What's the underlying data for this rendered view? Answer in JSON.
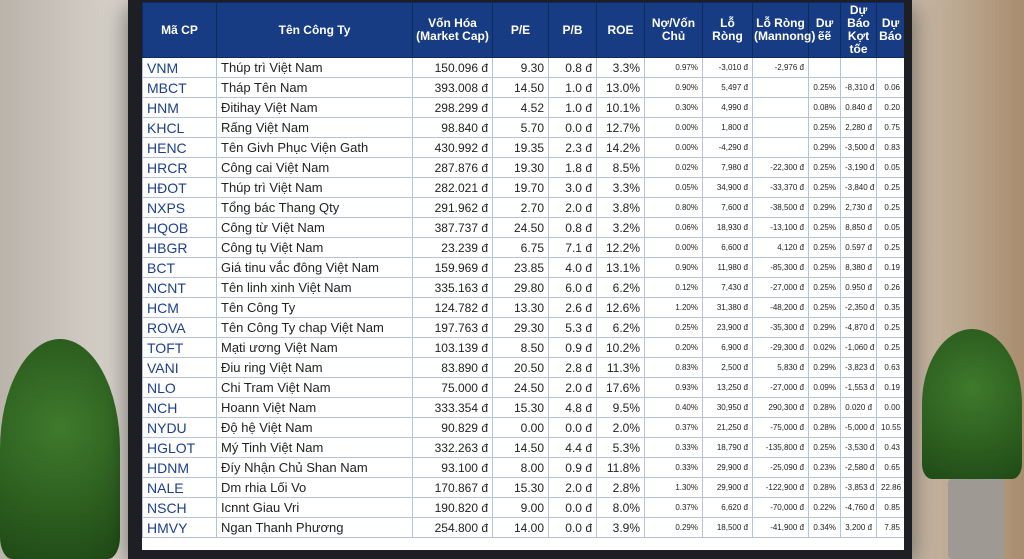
{
  "table": {
    "columns": [
      "Mã CP",
      "Tên Công Ty",
      "Vốn Hóa (Market Cap)",
      "P/E",
      "P/B",
      "ROE",
      "Nợ/Vốn Chủ",
      "Lỗ Ròng",
      "Lỗ Ròng (Mannong)",
      "Dư ẽẽ",
      "Dự Báo Kợt tốe",
      "Dự Báo"
    ],
    "rows": [
      [
        "VNM",
        "Thúp trì Việt Nam",
        "150.096 đ",
        "9.30",
        "0.8 đ",
        "3.3%",
        "0.97%",
        "-3,010 đ",
        "-2,976 đ",
        null,
        null,
        null
      ],
      [
        "MBCT",
        "Tháp Tên Nam",
        "393.008 đ",
        "14.50",
        "1.0 đ",
        "13.0%",
        "0.90%",
        "5,497 đ",
        null,
        "0.25%",
        "-8,310 đ",
        "0.06"
      ],
      [
        "HNM",
        "Đitihay Việt Nam",
        "298.299 đ",
        "4.52",
        "1.0 đ",
        "10.1%",
        "0.30%",
        "4,990 đ",
        null,
        "0.08%",
        "0.840 đ",
        "0.20"
      ],
      [
        "KHCL",
        "Rấng Việt Nam",
        "98.840 đ",
        "5.70",
        "0.0 đ",
        "12.7%",
        "0.00%",
        "1,800 đ",
        null,
        "0.25%",
        "2,280 đ",
        "0.75"
      ],
      [
        "HENC",
        "Tên Givh Phục Viện Gath",
        "430.992 đ",
        "19.35",
        "2.3 đ",
        "14.2%",
        "0.00%",
        "-4,290 đ",
        null,
        "0.29%",
        "-3,500 đ",
        "0.83"
      ],
      [
        "HRCR",
        "Công cai Việt Nam",
        "287.876 đ",
        "19.30",
        "1.8 đ",
        "8.5%",
        "0.02%",
        "7,980 đ",
        "-22,300 đ",
        "0.25%",
        "-3,190 đ",
        "0.05"
      ],
      [
        "HĐOT",
        "Thúp trì Việt Nam",
        "282.021 đ",
        "19.70",
        "3.0 đ",
        "3.3%",
        "0.05%",
        "34,900 đ",
        "-33,370 đ",
        "0.25%",
        "-3,840 đ",
        "0.25"
      ],
      [
        "NXPS",
        "Tổng bác Thang Qty",
        "291.962 đ",
        "2.70",
        "2.0 đ",
        "3.8%",
        "0.80%",
        "7,600 đ",
        "-38,500 đ",
        "0.29%",
        "2,730 đ",
        "0.25"
      ],
      [
        "HQOB",
        "Công từ Việt Nam",
        "387.737 đ",
        "24.50",
        "0.8 đ",
        "3.2%",
        "0.06%",
        "18,930 đ",
        "-13,100 đ",
        "0.25%",
        "8,850 đ",
        "0.05"
      ],
      [
        "HBGR",
        "Công tụ Việt Nam",
        "23.239 đ",
        "6.75",
        "7.1 đ",
        "12.2%",
        "0.00%",
        "6,600 đ",
        "4,120 đ",
        "0.25%",
        "0.597 đ",
        "0.25"
      ],
      [
        "BCT",
        "Giá tinu vắc đông Việt Nam",
        "159.969 đ",
        "23.85",
        "4.0 đ",
        "13.1%",
        "0.90%",
        "11,980 đ",
        "-85,300 đ",
        "0.25%",
        "8,380 đ",
        "0.19"
      ],
      [
        "NCNT",
        "Tên linh xinh Việt Nam",
        "335.163 đ",
        "29.80",
        "6.0 đ",
        "6.2%",
        "0.12%",
        "7,430 đ",
        "-27,000 đ",
        "0.25%",
        "0.950 đ",
        "0.26"
      ],
      [
        "HCM",
        "Tên Công Ty",
        "124.782 đ",
        "13.30",
        "2.6 đ",
        "12.6%",
        "1.20%",
        "31,380 đ",
        "-48,200 đ",
        "0.25%",
        "-2,350 đ",
        "0.35"
      ],
      [
        "ROVA",
        "Tên Công Ty chap Việt Nam",
        "197.763 đ",
        "29.30",
        "5.3 đ",
        "6.2%",
        "0.25%",
        "23,900 đ",
        "-35,300 đ",
        "0.29%",
        "-4,870 đ",
        "0.25"
      ],
      [
        "TOFT",
        "Mạti ương Việt Nam",
        "103.139 đ",
        "8.50",
        "0.9 đ",
        "10.2%",
        "0.20%",
        "6,900 đ",
        "-29,300 đ",
        "0.02%",
        "-1,060 đ",
        "0.25"
      ],
      [
        "VANI",
        "Điu ring Việt Nam",
        "83.890 đ",
        "20.50",
        "2.8 đ",
        "11.3%",
        "0.83%",
        "2,500 đ",
        "5,830 đ",
        "0.29%",
        "-3,823 đ",
        "0.63"
      ],
      [
        "NLO",
        "Chi Tram Việt Nam",
        "75.000 đ",
        "24.50",
        "2.0 đ",
        "17.6%",
        "0.93%",
        "13,250 đ",
        "-27,000 đ",
        "0.09%",
        "-1,553 đ",
        "0.19"
      ],
      [
        "NCH",
        "Hoann Việt Nam",
        "333.354 đ",
        "15.30",
        "4.8 đ",
        "9.5%",
        "0.40%",
        "30,950 đ",
        "290,300 đ",
        "0.28%",
        "0.020 đ",
        "0.00"
      ],
      [
        "NYDU",
        "Độ hệ Việt Nam",
        "90.829 đ",
        "0.00",
        "0.0 đ",
        "2.0%",
        "0.37%",
        "21,250 đ",
        "-75,000 đ",
        "0.28%",
        "-5,000 đ",
        "10.55"
      ],
      [
        "HGLOT",
        "Mý Tinh Việt Nam",
        "332.263 đ",
        "14.50",
        "4.4 đ",
        "5.3%",
        "0.33%",
        "18,790 đ",
        "-135,800 đ",
        "0.25%",
        "-3,530 đ",
        "0.43"
      ],
      [
        "HDNM",
        "Đíy Nhận Chủ Shan Nam",
        "93.100 đ",
        "8.00",
        "0.9 đ",
        "11.8%",
        "0.33%",
        "29,900 đ",
        "-25,090 đ",
        "0.23%",
        "-2,580 đ",
        "0.65"
      ],
      [
        "NALE",
        "Dm rhia Lối Vo",
        "170.867 đ",
        "15.30",
        "2.0 đ",
        "2.8%",
        "1.30%",
        "29,900 đ",
        "-122,900 đ",
        "0.28%",
        "-3,853 đ",
        "22.86"
      ],
      [
        "NSCH",
        "Icnnt Giau Vri",
        "190.820 đ",
        "9.00",
        "0.0 đ",
        "8.0%",
        "0.37%",
        "6,620 đ",
        "-70,000 đ",
        "0.22%",
        "-4,760 đ",
        "0.85"
      ],
      [
        "HMVY",
        "Ngan Thanh Phương",
        "254.800 đ",
        "14.00",
        "0.0 đ",
        "3.9%",
        "0.29%",
        "18,500 đ",
        "-41,900 đ",
        "0.34%",
        "3,200 đ",
        "7.85"
      ]
    ]
  }
}
